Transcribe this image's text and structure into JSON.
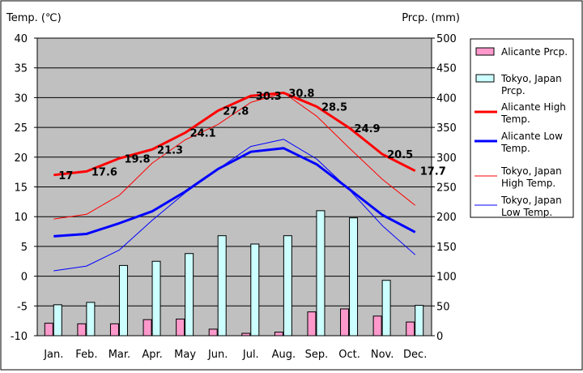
{
  "chart_data": {
    "type": "bar+line",
    "categories": [
      "Jan.",
      "Feb.",
      "Mar.",
      "Apr.",
      "May",
      "Jun.",
      "Jul.",
      "Aug.",
      "Sep.",
      "Oct.",
      "Nov.",
      "Dec."
    ],
    "y_left": {
      "label": "Temp. (℃)",
      "min": -10,
      "max": 40,
      "step": 5
    },
    "y_right": {
      "label": "Prcp. (mm)",
      "min": 0,
      "max": 500,
      "step": 50
    },
    "grid": true,
    "legend_position": "right",
    "bars": [
      {
        "name": "Alicante Prcp.",
        "color": "#ff99cc",
        "values": [
          21,
          20,
          20,
          27,
          28,
          11,
          4,
          6,
          40,
          45,
          33,
          23
        ]
      },
      {
        "name": "Tokyo, Japan Prcp.",
        "color": "#ccffff",
        "values": [
          52,
          56,
          118,
          125,
          138,
          168,
          154,
          168,
          210,
          198,
          93,
          51
        ]
      }
    ],
    "lines": [
      {
        "name": "Alicante High Temp.",
        "color": "#ff0000",
        "width": 3,
        "values": [
          17.0,
          17.6,
          19.8,
          21.3,
          24.1,
          27.8,
          30.3,
          30.8,
          28.5,
          24.9,
          20.5,
          17.7
        ],
        "labels": [
          "17",
          "17.6",
          "19.8",
          "21.3",
          "24.1",
          "27.8",
          "30.3",
          "30.8",
          "28.5",
          "24.9",
          "20.5",
          "17.7"
        ]
      },
      {
        "name": "Alicante Low Temp.",
        "color": "#0000ff",
        "width": 3,
        "values": [
          6.7,
          7.1,
          8.9,
          10.9,
          14.2,
          18.0,
          20.9,
          21.5,
          18.8,
          14.6,
          10.3,
          7.4
        ]
      },
      {
        "name": "Tokyo, Japan High Temp.",
        "color": "#ff0000",
        "width": 1,
        "values": [
          9.6,
          10.4,
          13.6,
          19.0,
          22.9,
          25.5,
          29.2,
          30.8,
          26.9,
          21.5,
          16.3,
          11.9
        ]
      },
      {
        "name": "Tokyo, Japan Low Temp.",
        "color": "#0000ff",
        "width": 1,
        "values": [
          0.9,
          1.7,
          4.4,
          9.4,
          14.0,
          18.0,
          21.8,
          23.0,
          19.7,
          14.5,
          8.5,
          3.6
        ]
      }
    ],
    "legend": [
      {
        "lines": [
          "Alicante Prcp."
        ]
      },
      {
        "lines": [
          "Tokyo, Japan",
          "Prcp."
        ]
      },
      {
        "lines": [
          "Alicante High",
          "Temp."
        ]
      },
      {
        "lines": [
          "Alicante Low",
          "Temp."
        ]
      },
      {
        "lines": [
          "Tokyo, Japan",
          "High Temp."
        ]
      },
      {
        "lines": [
          "Tokyo, Japan",
          "Low Temp."
        ]
      }
    ]
  }
}
